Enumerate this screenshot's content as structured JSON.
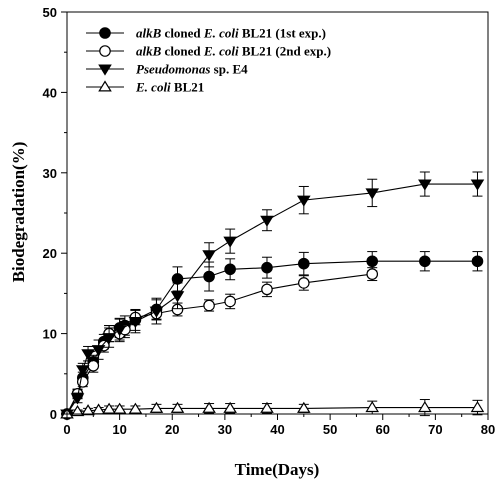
{
  "chart_data": {
    "type": "line",
    "xlabel": "Time(Days)",
    "ylabel": "Biodegradation(%)",
    "xlim": [
      0,
      80
    ],
    "ylim": [
      0,
      50
    ],
    "xticks": [
      0,
      10,
      20,
      30,
      40,
      50,
      60,
      70,
      80
    ],
    "yticks": [
      0,
      10,
      20,
      30,
      40,
      50
    ],
    "grid": false,
    "legend_position": "top-left",
    "series": [
      {
        "name_parts": [
          {
            "text": "alkB",
            "italic": true
          },
          {
            "text": " cloned ",
            "italic": false
          },
          {
            "text": "E. coli",
            "italic": true
          },
          {
            "text": " BL21 (1st exp.)",
            "italic": false
          }
        ],
        "marker": "circle-filled",
        "color": "#000000",
        "x": [
          0,
          2,
          3,
          5,
          7,
          8,
          10,
          11,
          13,
          17,
          21,
          27,
          31,
          38,
          45,
          58,
          68,
          78
        ],
        "y": [
          0,
          2.5,
          4.5,
          6.5,
          9,
          10,
          10.7,
          11,
          11.7,
          13,
          16.8,
          17.1,
          18,
          18.2,
          18.7,
          19,
          19,
          19
        ],
        "err": [
          0,
          0.6,
          0.7,
          0.8,
          0.9,
          1.0,
          1.2,
          1.2,
          1.3,
          1.2,
          1.5,
          1.8,
          1.3,
          1.3,
          1.4,
          1.2,
          1.2,
          1.2
        ]
      },
      {
        "name_parts": [
          {
            "text": "alkB",
            "italic": true
          },
          {
            "text": " cloned ",
            "italic": false
          },
          {
            "text": "E. coli",
            "italic": true
          },
          {
            "text": " BL21 (2nd exp.)",
            "italic": false
          }
        ],
        "marker": "circle-open",
        "color": "#000000",
        "x": [
          0,
          2,
          3,
          5,
          7,
          8,
          10,
          11,
          13,
          17,
          21,
          27,
          31,
          38,
          45,
          58
        ],
        "y": [
          0,
          2.5,
          4,
          6,
          8.5,
          10,
          10,
          10.5,
          12,
          12.5,
          13,
          13.5,
          14,
          15.5,
          16.3,
          17.4
        ],
        "err": [
          0,
          0.5,
          0.6,
          0.8,
          0.8,
          1.0,
          1.0,
          1.0,
          0.9,
          0.8,
          0.8,
          0.7,
          0.9,
          0.9,
          0.9,
          0.8
        ]
      },
      {
        "name_parts": [
          {
            "text": "Pseudomonas",
            "italic": true
          },
          {
            "text": " sp. E4",
            "italic": false
          }
        ],
        "marker": "triangle-down-filled",
        "color": "#000000",
        "x": [
          0,
          2,
          3,
          4,
          6,
          8,
          10,
          13,
          17,
          21,
          27,
          31,
          38,
          45,
          58,
          68,
          78
        ],
        "y": [
          0,
          2,
          5.5,
          7.5,
          8,
          9.5,
          10.5,
          11.5,
          12.8,
          14.7,
          19.8,
          21.5,
          24.1,
          26.6,
          27.5,
          28.6,
          28.6
        ],
        "err": [
          0,
          0.6,
          0.8,
          0.9,
          1.2,
          1.2,
          1.3,
          1.4,
          1.6,
          1.6,
          1.5,
          1.5,
          1.3,
          1.7,
          1.7,
          1.5,
          1.5
        ]
      },
      {
        "name_parts": [
          {
            "text": "E. coli",
            "italic": true
          },
          {
            "text": " BL21",
            "italic": false
          }
        ],
        "marker": "triangle-up-open",
        "color": "#000000",
        "x": [
          0,
          2,
          4,
          6,
          8,
          10,
          13,
          17,
          21,
          27,
          31,
          38,
          45,
          58,
          68,
          78
        ],
        "y": [
          0,
          0.3,
          0.4,
          0.5,
          0.6,
          0.6,
          0.6,
          0.7,
          0.7,
          0.7,
          0.7,
          0.7,
          0.7,
          0.8,
          0.8,
          0.8
        ],
        "err": [
          0,
          0.2,
          0.3,
          0.3,
          0.4,
          0.4,
          0.4,
          0.5,
          0.5,
          0.6,
          0.6,
          0.6,
          0.5,
          0.8,
          1.0,
          0.9
        ]
      }
    ]
  }
}
